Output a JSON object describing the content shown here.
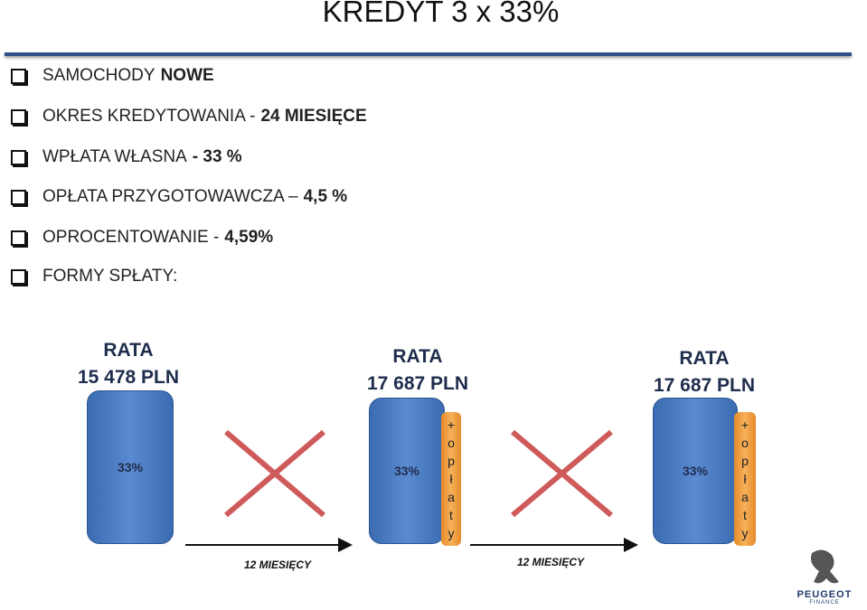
{
  "title": "KREDYT 3 x 33%",
  "bullets": [
    {
      "text": "SAMOCHODY",
      "bold": "NOWE"
    },
    {
      "text": "OKRES KREDYTOWANIA -",
      "bold": "24 MIESIĘCE"
    },
    {
      "text": "WPŁATA WŁASNA",
      "bold": "- 33 %"
    },
    {
      "text": "OPŁATA PRZYGOTOWAWCZA –",
      "bold": "4,5 %"
    },
    {
      "text": "OPROCENTOWANIE -",
      "bold": "4,59%"
    },
    {
      "text": "FORMY SPŁATY:"
    }
  ],
  "payments": [
    {
      "label": "RATA",
      "amount": "15 478 PLN",
      "share": "33%"
    },
    {
      "label": "RATA",
      "amount": "17 687 PLN",
      "share": "33%",
      "fee": [
        "+",
        "o",
        "p",
        "ł",
        "a",
        "t",
        "y"
      ]
    },
    {
      "label": "RATA",
      "amount": "17 687 PLN",
      "share": "33%",
      "fee": [
        "+",
        "o",
        "p",
        "ł",
        "a",
        "t",
        "y"
      ]
    }
  ],
  "periods": [
    "12 MIESIĘCY",
    "12 MIESIĘCY"
  ],
  "logo": {
    "brand": "PEUGEOT",
    "sub": "FINANCE"
  }
}
